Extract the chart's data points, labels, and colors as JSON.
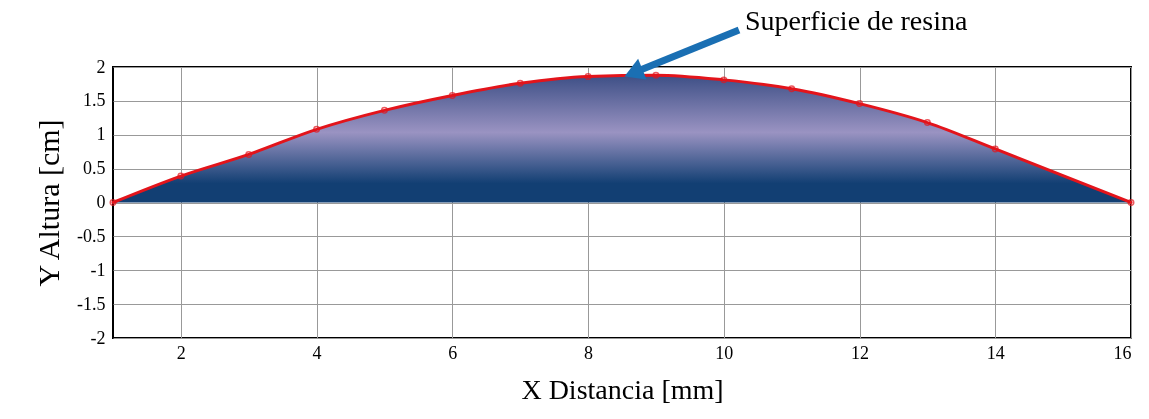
{
  "chart_data": {
    "type": "area",
    "xlabel": "X Distancia [mm]",
    "ylabel": "Y Altura [cm]",
    "x": [
      1,
      2,
      3,
      4,
      5,
      6,
      7,
      8,
      9,
      10,
      11,
      12,
      13,
      14,
      16
    ],
    "series": [
      {
        "color": "#e3141b",
        "values": [
          0,
          0.39,
          0.71,
          1.08,
          1.36,
          1.58,
          1.76,
          1.86,
          1.88,
          1.81,
          1.68,
          1.46,
          1.18,
          0.79,
          0
        ]
      }
    ],
    "annotations": [
      "Superficie de resina"
    ],
    "xlim": [
      1,
      16
    ],
    "xticks": [
      2,
      4,
      6,
      8,
      10,
      12,
      14,
      16
    ],
    "ylim": [
      -2,
      2
    ],
    "yticks": [
      -2,
      -1.5,
      -1,
      -0.5,
      0,
      0.5,
      1,
      1.5,
      2
    ],
    "grid": true,
    "marker": "circle",
    "line_style": "solid"
  }
}
